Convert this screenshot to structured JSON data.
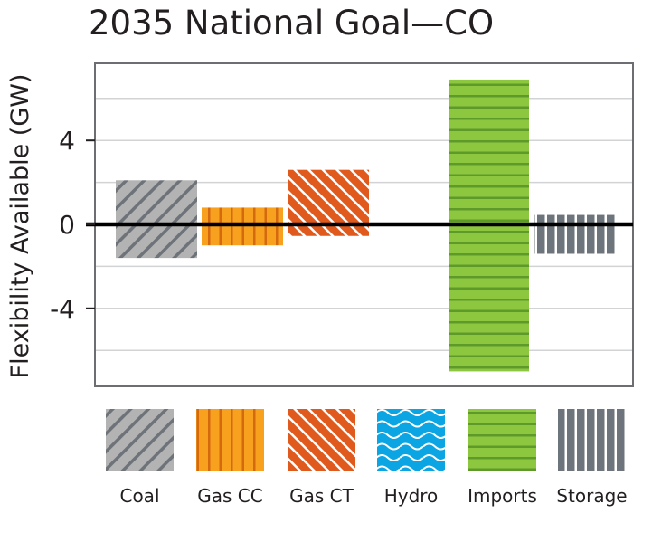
{
  "chart_data": {
    "type": "bar",
    "subtype": "floating-range",
    "title": "2035 National Goal—CO",
    "ylabel": "Flexibility Available (GW)",
    "xlabel": "",
    "ylim": [
      -7.7,
      7.7
    ],
    "yticks": [
      4,
      0,
      -4
    ],
    "ytick_labels": [
      "4",
      "0",
      "-4"
    ],
    "grid": true,
    "grid_step": 2,
    "legend_position": "bottom",
    "categories": [
      "Coal",
      "Gas CC",
      "Gas CT",
      "Hydro",
      "Imports",
      "Storage"
    ],
    "series": [
      {
        "category": "Coal",
        "max": 2.1,
        "min": -1.6,
        "color": "#b3b3b3",
        "stripe": "#6d7379",
        "pattern": "diagonal-up"
      },
      {
        "category": "Gas CC",
        "max": 0.8,
        "min": -1.0,
        "color": "#f7a11f",
        "stripe": "#d4690f",
        "pattern": "vertical"
      },
      {
        "category": "Gas CT",
        "max": 2.6,
        "min": -0.55,
        "color": "#e05a1e",
        "stripe": "#ffffff",
        "pattern": "diagonal-down"
      },
      {
        "category": "Hydro",
        "max": null,
        "min": null,
        "color": "#0aa5e2",
        "stripe": "#ffffff",
        "pattern": "waves"
      },
      {
        "category": "Imports",
        "max": 6.9,
        "min": -7.0,
        "color": "#8dc63f",
        "stripe": "#5e9a2a",
        "pattern": "horizontal"
      },
      {
        "category": "Storage",
        "max": 0.45,
        "min": -1.4,
        "color": "#6d747b",
        "stripe": "#ffffff",
        "pattern": "vertical-wide"
      }
    ]
  }
}
